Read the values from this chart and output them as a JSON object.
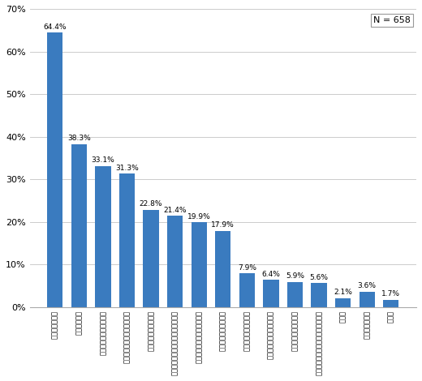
{
  "categories": [
    "元本保証がない",
    "手数料が高い",
    "わかりにくい運用実績が",
    "公社債に比べて安心できない",
    "種類が多く選択に迷う",
    "情報が少ない購入後の運用に関する",
    "面白さに欠ける株式に比べて",
    "利回りがものたりない",
    "なんとなくなじめない",
    "購入手続きがわずらわしい",
    "クローズド期間がある",
    "銀行等の店舗がない近くに証券会社",
    "その他",
    "よくわからない",
    "無回答"
  ],
  "values": [
    64.4,
    38.3,
    33.1,
    31.3,
    22.8,
    21.4,
    19.9,
    17.9,
    7.9,
    6.4,
    5.9,
    5.6,
    2.1,
    3.6,
    1.7
  ],
  "bar_color": "#3a7bbf",
  "ylim": [
    0,
    70
  ],
  "yticks": [
    0,
    10,
    20,
    30,
    40,
    50,
    60,
    70
  ],
  "ytick_labels": [
    "0%",
    "10%",
    "20%",
    "30%",
    "40%",
    "50%",
    "60%",
    "70%"
  ],
  "n_label": "N = 658",
  "background_color": "#ffffff",
  "grid_color": "#cccccc"
}
